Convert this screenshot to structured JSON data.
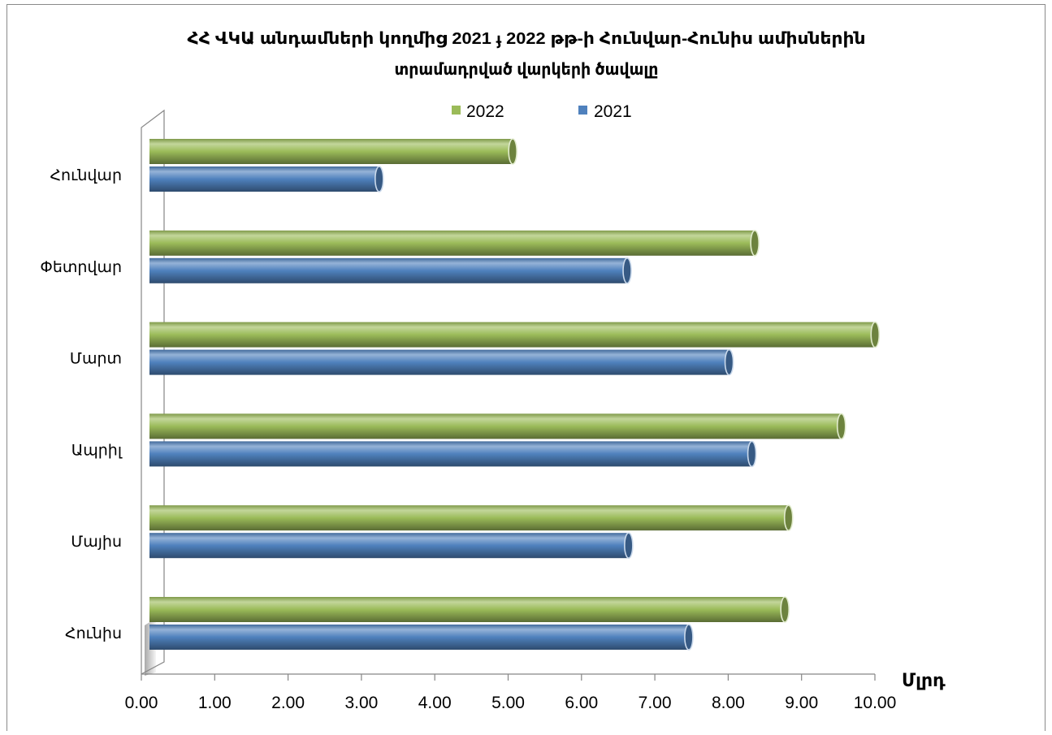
{
  "chart_data": {
    "type": "bar",
    "orientation": "horizontal",
    "style": "3d-cylinder",
    "title": [
      "ՀՀ ՎԿԱ անդամների կողմից 2021 ֈ 2022 թթ-ի Հունվար-Հունիս ամիսներին",
      "տրամադրված վարկերի ծավալը"
    ],
    "categories": [
      "Հունվար",
      "Փետրվար",
      "Մարտ",
      "Ապրիլ",
      "Մայիս",
      "Հունիս"
    ],
    "series": [
      {
        "name": "2022",
        "color": "#9bbb59",
        "values": [
          4.93,
          8.23,
          9.87,
          9.41,
          8.69,
          8.64
        ]
      },
      {
        "name": "2021",
        "color": "#4f81bd",
        "values": [
          3.11,
          6.49,
          7.88,
          8.19,
          6.51,
          7.33
        ]
      }
    ],
    "xlabel": "Մլրդ",
    "xlim": [
      0,
      10
    ],
    "xticks": [
      "0.00",
      "1.00",
      "2.00",
      "3.00",
      "4.00",
      "5.00",
      "6.00",
      "7.00",
      "8.00",
      "9.00",
      "10.00"
    ],
    "legend": "top",
    "grid": false
  }
}
